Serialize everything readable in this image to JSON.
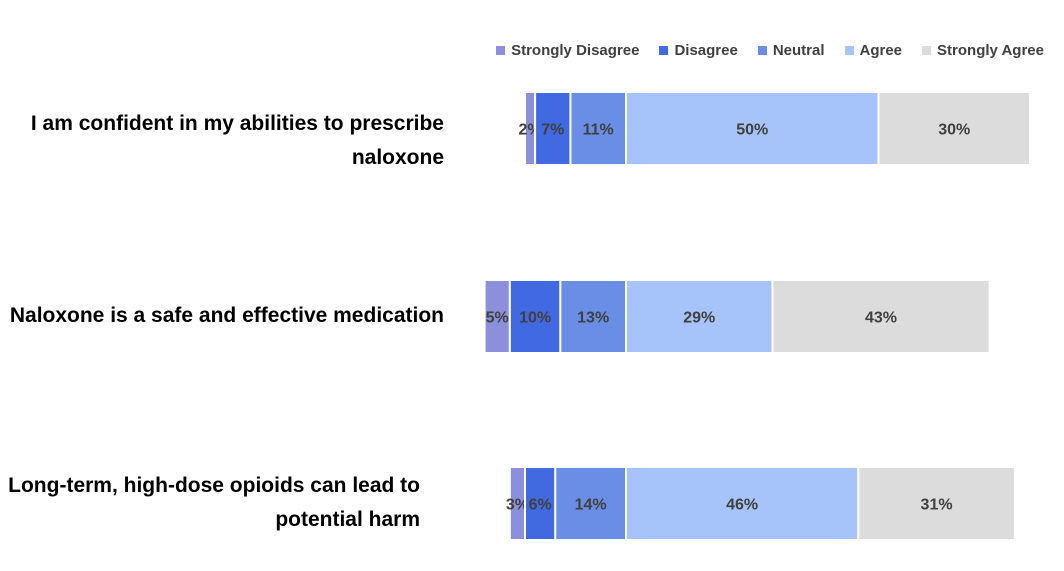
{
  "chart_data": {
    "type": "stacked-bar-horizontal",
    "title": "",
    "xlabel": "",
    "ylabel": "",
    "legend_position": "top-right",
    "series": [
      {
        "name": "Strongly Disagree",
        "color": "#8C8FD9"
      },
      {
        "name": "Disagree",
        "color": "#4169E1"
      },
      {
        "name": "Neutral",
        "color": "#6A8DE6"
      },
      {
        "name": "Agree",
        "color": "#A7C4FA"
      },
      {
        "name": "Strongly Agree",
        "color": "#DCDCDC"
      }
    ],
    "categories": [
      "I am confident in my abilities to prescribe naloxone",
      "Naloxone is a safe and effective medication",
      "Long-term, high-dose opioids can lead to potential harm"
    ],
    "category_lines": [
      [
        "I am confident in my abilities to prescribe",
        "naloxone"
      ],
      [
        "Naloxone is a safe and effective medication"
      ],
      [
        "Long-term, high-dose opioids can lead to",
        "potential harm"
      ]
    ],
    "values": [
      [
        2,
        7,
        11,
        50,
        30
      ],
      [
        5,
        10,
        13,
        29,
        43
      ],
      [
        3,
        6,
        14,
        46,
        31
      ]
    ],
    "value_labels": [
      [
        "2%",
        "7%",
        "11%",
        "50%",
        "30%"
      ],
      [
        "5%",
        "10%",
        "13%",
        "29%",
        "43%"
      ],
      [
        "3%",
        "6%",
        "14%",
        "46%",
        "31%"
      ]
    ],
    "anchor": "neutral-center"
  }
}
